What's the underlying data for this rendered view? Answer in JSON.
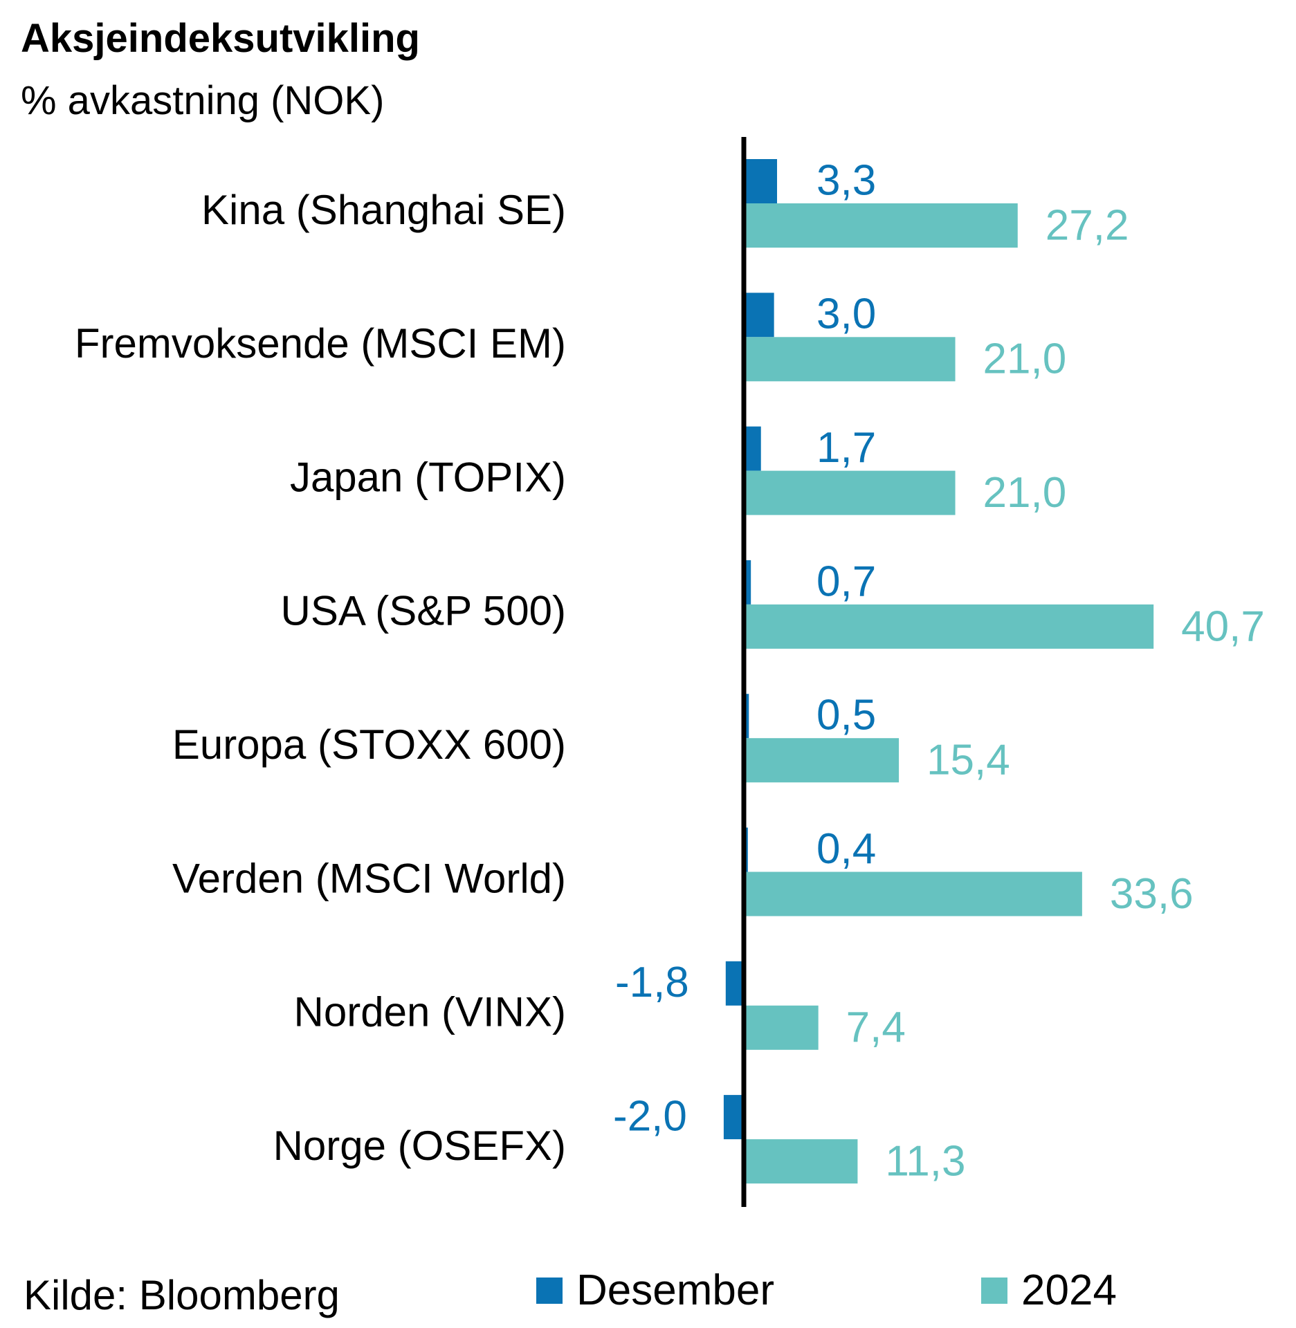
{
  "title": "Aksjeindeksutvikling",
  "subtitle": "% avkastning (NOK)",
  "source": "Kilde: Bloomberg",
  "colors": {
    "desember": "#0a73b4",
    "year2024": "#66c2c0",
    "axis": "#000000"
  },
  "chart_data": {
    "type": "bar",
    "orientation": "horizontal",
    "title": "Aksjeindeksutvikling",
    "subtitle": "% avkastning (NOK)",
    "categories": [
      "Kina (Shanghai SE)",
      "Fremvoksende (MSCI EM)",
      "Japan (TOPIX)",
      "USA (S&P 500)",
      "Europa (STOXX 600)",
      "Verden (MSCI World)",
      "Norden (VINX)",
      "Norge (OSEFX)"
    ],
    "series": [
      {
        "name": "Desember",
        "values": [
          3.3,
          3.0,
          1.7,
          0.7,
          0.5,
          0.4,
          -1.8,
          -2.0
        ],
        "labels": [
          "3,3",
          "3,0",
          "1,7",
          "0,7",
          "0,5",
          "0,4",
          "-1,8",
          "-2,0"
        ]
      },
      {
        "name": "2024",
        "values": [
          27.2,
          21.0,
          21.0,
          40.7,
          15.4,
          33.6,
          7.4,
          11.3
        ],
        "labels": [
          "27,2",
          "21,0",
          "21,0",
          "40,7",
          "15,4",
          "33,6",
          "7,4",
          "11,3"
        ]
      }
    ],
    "legend_position": "bottom",
    "grid": false
  }
}
